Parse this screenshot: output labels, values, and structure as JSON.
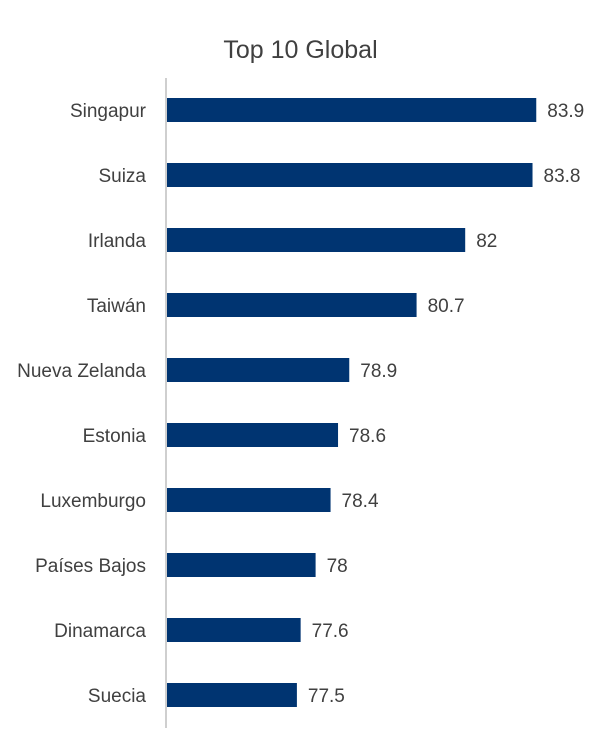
{
  "chart_data": {
    "type": "bar",
    "orientation": "horizontal",
    "title": "Top 10 Global",
    "xlabel": "",
    "ylabel": "",
    "categories": [
      "Singapur",
      "Suiza",
      "Irlanda",
      "Taiwán",
      "Nueva Zelanda",
      "Estonia",
      "Luxemburgo",
      "Países Bajos",
      "Dinamarca",
      "Suecia"
    ],
    "values": [
      83.9,
      83.8,
      82,
      80.7,
      78.9,
      78.6,
      78.4,
      78,
      77.6,
      77.5
    ],
    "value_labels": [
      "83.9",
      "83.8",
      "82",
      "80.7",
      "78.9",
      "78.6",
      "78.4",
      "78",
      "77.6",
      "77.5"
    ],
    "xlim": [
      74,
      84
    ],
    "grid": false,
    "legend": "none",
    "bar_color": "#003471",
    "axis_color": "#bfbfbf"
  }
}
